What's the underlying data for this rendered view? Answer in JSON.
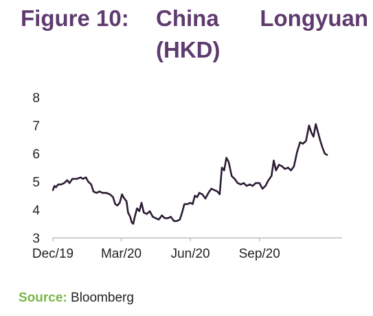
{
  "figure": {
    "label": "Figure 10:",
    "title_word1": "China",
    "title_word2": "Longyuan",
    "title_unit": "(HKD)"
  },
  "source": {
    "label": "Source:",
    "text": "Bloomberg"
  },
  "colors": {
    "title": "#5e3a6e",
    "line": "#2b1b33",
    "source_label": "#7ab648"
  },
  "chart_data": {
    "type": "line",
    "title": "Figure 10: China Longyuan (HKD)",
    "xlabel": "",
    "ylabel": "",
    "ylim": [
      3,
      8
    ],
    "yticks": [
      3,
      4,
      5,
      6,
      7,
      8
    ],
    "xlim": [
      "2019-12-01",
      "2020-12-20"
    ],
    "xticks": [
      {
        "label": "Dec/19",
        "date": "2019-12-01"
      },
      {
        "label": "Mar/20",
        "date": "2020-03-01"
      },
      {
        "label": "Jun/20",
        "date": "2020-06-01"
      },
      {
        "label": "Sep/20",
        "date": "2020-09-01"
      }
    ],
    "grid": false,
    "legend": "none",
    "series": [
      {
        "name": "",
        "points": [
          [
            "2019-12-01",
            4.7
          ],
          [
            "2019-12-03",
            4.85
          ],
          [
            "2019-12-05",
            4.8
          ],
          [
            "2019-12-08",
            4.9
          ],
          [
            "2019-12-12",
            4.9
          ],
          [
            "2019-12-16",
            4.95
          ],
          [
            "2019-12-20",
            5.05
          ],
          [
            "2019-12-23",
            4.95
          ],
          [
            "2019-12-27",
            5.1
          ],
          [
            "2020-01-02",
            5.1
          ],
          [
            "2020-01-07",
            5.15
          ],
          [
            "2020-01-10",
            5.1
          ],
          [
            "2020-01-14",
            5.15
          ],
          [
            "2020-01-17",
            5.0
          ],
          [
            "2020-01-21",
            4.9
          ],
          [
            "2020-01-24",
            4.65
          ],
          [
            "2020-01-28",
            4.6
          ],
          [
            "2020-02-01",
            4.65
          ],
          [
            "2020-02-05",
            4.6
          ],
          [
            "2020-02-10",
            4.6
          ],
          [
            "2020-02-15",
            4.55
          ],
          [
            "2020-02-19",
            4.45
          ],
          [
            "2020-02-22",
            4.2
          ],
          [
            "2020-02-25",
            4.15
          ],
          [
            "2020-02-28",
            4.25
          ],
          [
            "2020-03-02",
            4.55
          ],
          [
            "2020-03-05",
            4.4
          ],
          [
            "2020-03-08",
            4.3
          ],
          [
            "2020-03-10",
            3.9
          ],
          [
            "2020-03-13",
            3.75
          ],
          [
            "2020-03-15",
            3.55
          ],
          [
            "2020-03-17",
            3.5
          ],
          [
            "2020-03-19",
            3.75
          ],
          [
            "2020-03-22",
            4.05
          ],
          [
            "2020-03-25",
            3.95
          ],
          [
            "2020-03-28",
            4.25
          ],
          [
            "2020-03-31",
            3.9
          ],
          [
            "2020-04-04",
            3.85
          ],
          [
            "2020-04-08",
            3.95
          ],
          [
            "2020-04-12",
            3.75
          ],
          [
            "2020-04-16",
            3.7
          ],
          [
            "2020-04-20",
            3.65
          ],
          [
            "2020-04-24",
            3.8
          ],
          [
            "2020-04-28",
            3.7
          ],
          [
            "2020-05-02",
            3.7
          ],
          [
            "2020-05-06",
            3.75
          ],
          [
            "2020-05-10",
            3.6
          ],
          [
            "2020-05-14",
            3.6
          ],
          [
            "2020-05-18",
            3.65
          ],
          [
            "2020-05-21",
            3.9
          ],
          [
            "2020-05-24",
            4.2
          ],
          [
            "2020-05-28",
            4.2
          ],
          [
            "2020-06-01",
            4.25
          ],
          [
            "2020-06-04",
            4.2
          ],
          [
            "2020-06-07",
            4.5
          ],
          [
            "2020-06-10",
            4.45
          ],
          [
            "2020-06-13",
            4.6
          ],
          [
            "2020-06-17",
            4.55
          ],
          [
            "2020-06-21",
            4.4
          ],
          [
            "2020-06-25",
            4.6
          ],
          [
            "2020-06-29",
            4.75
          ],
          [
            "2020-07-03",
            4.7
          ],
          [
            "2020-07-07",
            4.65
          ],
          [
            "2020-07-10",
            4.55
          ],
          [
            "2020-07-13",
            5.5
          ],
          [
            "2020-07-16",
            5.4
          ],
          [
            "2020-07-19",
            5.85
          ],
          [
            "2020-07-22",
            5.7
          ],
          [
            "2020-07-26",
            5.2
          ],
          [
            "2020-07-30",
            5.1
          ],
          [
            "2020-08-03",
            4.95
          ],
          [
            "2020-08-07",
            4.9
          ],
          [
            "2020-08-11",
            4.95
          ],
          [
            "2020-08-15",
            4.85
          ],
          [
            "2020-08-19",
            4.9
          ],
          [
            "2020-08-23",
            4.85
          ],
          [
            "2020-08-27",
            4.95
          ],
          [
            "2020-09-01",
            4.95
          ],
          [
            "2020-09-05",
            4.75
          ],
          [
            "2020-09-09",
            4.85
          ],
          [
            "2020-09-13",
            5.05
          ],
          [
            "2020-09-17",
            5.2
          ],
          [
            "2020-09-20",
            5.75
          ],
          [
            "2020-09-23",
            5.4
          ],
          [
            "2020-09-27",
            5.6
          ],
          [
            "2020-10-01",
            5.55
          ],
          [
            "2020-10-05",
            5.45
          ],
          [
            "2020-10-09",
            5.5
          ],
          [
            "2020-10-13",
            5.4
          ],
          [
            "2020-10-17",
            5.55
          ],
          [
            "2020-10-21",
            6.05
          ],
          [
            "2020-10-25",
            6.4
          ],
          [
            "2020-10-29",
            6.35
          ],
          [
            "2020-11-02",
            6.45
          ],
          [
            "2020-11-06",
            7.0
          ],
          [
            "2020-11-09",
            6.75
          ],
          [
            "2020-11-12",
            6.6
          ],
          [
            "2020-11-15",
            7.05
          ],
          [
            "2020-11-18",
            6.75
          ],
          [
            "2020-11-21",
            6.45
          ],
          [
            "2020-11-24",
            6.2
          ],
          [
            "2020-11-27",
            6.0
          ],
          [
            "2020-11-30",
            5.95
          ]
        ]
      }
    ]
  }
}
